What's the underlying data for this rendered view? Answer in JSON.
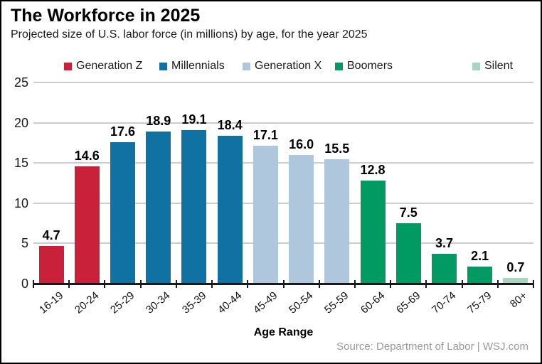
{
  "header": {
    "title": "The Workforce in 2025",
    "subtitle": "Projected size of U.S. labor force (in millions) by age, for the year 2025"
  },
  "legend": {
    "items": [
      {
        "label": "Generation Z",
        "color": "#C9213A"
      },
      {
        "label": "Millennials",
        "color": "#0F72A2"
      },
      {
        "label": "Generation X",
        "color": "#AFC7DC"
      },
      {
        "label": "Boomers",
        "color": "#009A62"
      },
      {
        "label": "Silent",
        "color": "#A9D4BE"
      }
    ]
  },
  "chart_data": {
    "type": "bar",
    "title": "The Workforce in 2025",
    "subtitle": "Projected size of U.S. labor force (in millions) by age, for the year 2025",
    "categories": [
      "16-19",
      "20-24",
      "25-29",
      "30-34",
      "35-39",
      "40-44",
      "45-49",
      "50-54",
      "55-59",
      "60-64",
      "65-69",
      "70-74",
      "75-79",
      "80+"
    ],
    "values": [
      4.7,
      14.6,
      17.6,
      18.9,
      19.1,
      18.4,
      17.1,
      16.0,
      15.5,
      12.8,
      7.5,
      3.7,
      2.1,
      0.7
    ],
    "value_labels": [
      "4.7",
      "14.6",
      "17.6",
      "18.9",
      "19.1",
      "18.4",
      "17.1",
      "16.0",
      "15.5",
      "12.8",
      "7.5",
      "3.7",
      "2.1",
      "0.7"
    ],
    "bar_groups": [
      "Generation Z",
      "Generation Z",
      "Millennials",
      "Millennials",
      "Millennials",
      "Millennials",
      "Generation X",
      "Generation X",
      "Generation X",
      "Boomers",
      "Boomers",
      "Boomers",
      "Boomers",
      "Silent"
    ],
    "group_colors": {
      "Generation Z": "#C9213A",
      "Millennials": "#0F72A2",
      "Generation X": "#AFC7DC",
      "Boomers": "#009A62",
      "Silent": "#A9D4BE"
    },
    "xlabel": "Age Range",
    "ylabel": "",
    "ylim": [
      0,
      25
    ],
    "yticks": [
      0,
      5,
      10,
      15,
      20,
      25
    ],
    "grid": true,
    "legend_position": "top"
  },
  "footer": {
    "source": "Source: Department of Labor  |  WSJ.com"
  }
}
